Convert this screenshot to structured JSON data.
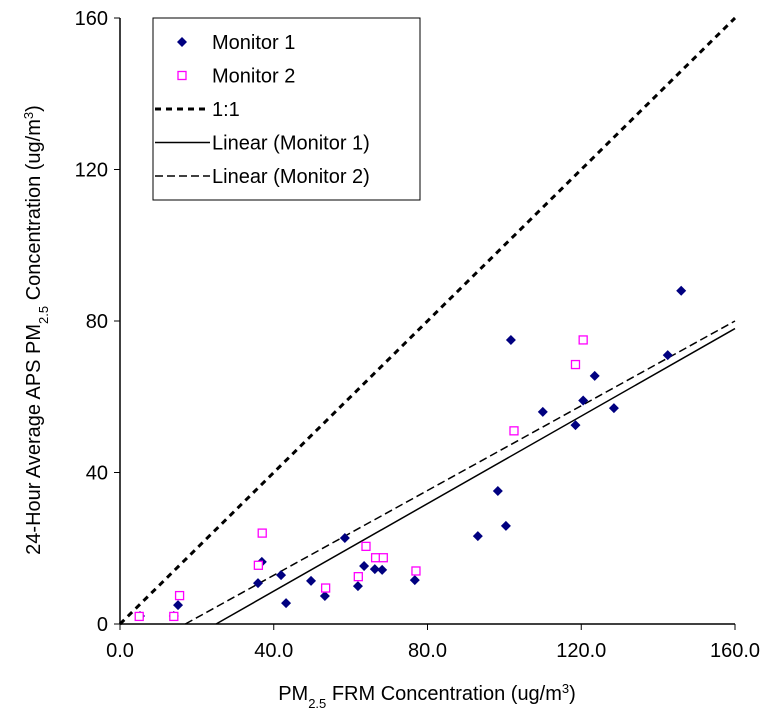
{
  "chart_data": {
    "type": "scatter",
    "xlabel": [
      "PM",
      "2.5",
      " FRM Concentration (ug/m",
      "3",
      ")"
    ],
    "ylabel": [
      "24-Hour Average APS PM",
      "2.5",
      " Concentration (ug/m",
      "3",
      ")"
    ],
    "xlim": [
      0,
      160
    ],
    "ylim": [
      0,
      160
    ],
    "xticks": [
      {
        "value": 0,
        "label": "0.0"
      },
      {
        "value": 40,
        "label": "40.0"
      },
      {
        "value": 80,
        "label": "80.0"
      },
      {
        "value": 120,
        "label": "120.0"
      },
      {
        "value": 160,
        "label": "160.0"
      }
    ],
    "yticks": [
      0,
      40,
      80,
      120,
      160
    ],
    "grid": false,
    "legend": "upper left",
    "series": [
      {
        "name": "Monitor 1",
        "color": "#000080",
        "marker": "diamond",
        "x": [
          5.2,
          14.0,
          15.1,
          35.9,
          36.9,
          41.9,
          43.2,
          49.7,
          53.3,
          58.5,
          61.9,
          63.5,
          66.3,
          68.2,
          76.7,
          93.1,
          98.3,
          100.4,
          101.7,
          110.0,
          118.5,
          120.5,
          123.5,
          128.5,
          142.5,
          146.0
        ],
        "values": [
          2.1,
          2.1,
          5.0,
          10.8,
          16.4,
          12.9,
          5.5,
          11.4,
          7.4,
          22.7,
          10.0,
          15.3,
          14.5,
          14.3,
          11.6,
          23.2,
          35.1,
          25.9,
          75.0,
          56.0,
          52.5,
          59.0,
          65.5,
          57.0,
          71.0,
          88.0
        ]
      },
      {
        "name": "Monitor 2",
        "color": "#ff00ff",
        "marker": "square",
        "x": [
          5.0,
          14.0,
          15.5,
          36.0,
          37.0,
          53.5,
          62.0,
          64.0,
          66.5,
          68.5,
          77.0,
          102.5,
          118.5,
          120.5
        ],
        "values": [
          2.0,
          2.0,
          7.5,
          15.5,
          24.0,
          9.5,
          12.5,
          20.5,
          17.5,
          17.5,
          14.0,
          51.0,
          68.5,
          75.0
        ]
      },
      {
        "name": "1:1",
        "color": "#000000",
        "dash": "6,5",
        "width": 3,
        "x": [
          0,
          160
        ],
        "values": [
          0,
          160
        ]
      },
      {
        "name": "Linear (Monitor 1)",
        "color": "#000000",
        "width": 1.5,
        "x": [
          25,
          160
        ],
        "values": [
          0,
          78
        ]
      },
      {
        "name": "Linear (Monitor 2)",
        "color": "#000000",
        "dash": "8,4",
        "width": 1.5,
        "x": [
          17,
          160
        ],
        "values": [
          0,
          80
        ]
      }
    ]
  }
}
